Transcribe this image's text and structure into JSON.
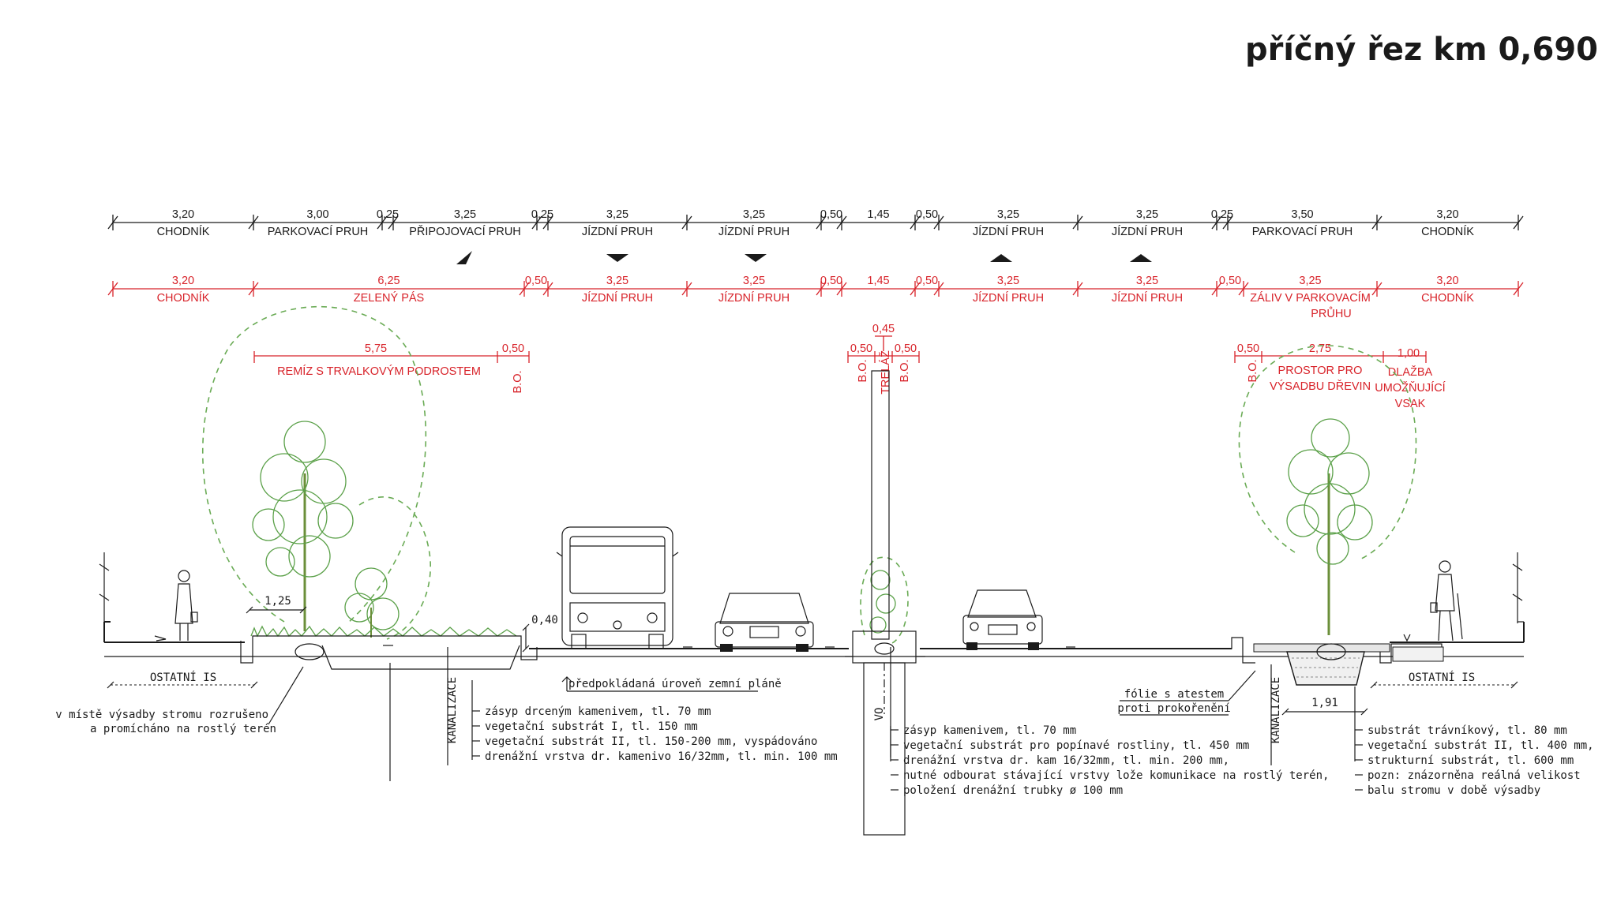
{
  "title": "příčný řez km 0,690",
  "top_dims": [
    {
      "v": "3,20",
      "l": "CHODNÍK"
    },
    {
      "v": "3,00",
      "l": "PARKOVACÍ PRUH"
    },
    {
      "v": "0,25",
      "l": ""
    },
    {
      "v": "3,25",
      "l": "PŘIPOJOVACÍ PRUH"
    },
    {
      "v": "0,25",
      "l": ""
    },
    {
      "v": "3,25",
      "l": "JÍZDNÍ PRUH"
    },
    {
      "v": "3,25",
      "l": "JÍZDNÍ PRUH"
    },
    {
      "v": "0,50",
      "l": ""
    },
    {
      "v": "1,45",
      "l": ""
    },
    {
      "v": "0,50",
      "l": ""
    },
    {
      "v": "3,25",
      "l": "JÍZDNÍ PRUH"
    },
    {
      "v": "3,25",
      "l": "JÍZDNÍ PRUH"
    },
    {
      "v": "0,25",
      "l": ""
    },
    {
      "v": "3,50",
      "l": "PARKOVACÍ PRUH"
    },
    {
      "v": "3,20",
      "l": "CHODNÍK"
    }
  ],
  "red_dims": [
    {
      "v": "3,20",
      "l": "CHODNÍK"
    },
    {
      "v": "6,25",
      "l": "ZELENÝ PÁS"
    },
    {
      "v": "0,50",
      "l": ""
    },
    {
      "v": "3,25",
      "l": "JÍZDNÍ PRUH"
    },
    {
      "v": "3,25",
      "l": "JÍZDNÍ PRUH"
    },
    {
      "v": "0,50",
      "l": ""
    },
    {
      "v": "1,45",
      "l": ""
    },
    {
      "v": "0,50",
      "l": ""
    },
    {
      "v": "3,25",
      "l": "JÍZDNÍ PRUH"
    },
    {
      "v": "3,25",
      "l": "JÍZDNÍ PRUH"
    },
    {
      "v": "0,50",
      "l": ""
    },
    {
      "v": "3,25",
      "l": "ZÁLIV V PARKOVACÍM"
    },
    {
      "v": "3,20",
      "l": "CHODNÍK"
    }
  ],
  "red_extra": {
    "zaliv_line2": "PRŮHU",
    "remiz_v": "5,75",
    "remiz_l": "REMÍZ S TRVALKOVÝM PODROSTEM",
    "remiz_bo_v": "0,50",
    "bo": "B.O.",
    "c_left": "0,50",
    "c_mid": "0,45",
    "c_right": "0,50",
    "trelaz": "TRELÁŽ",
    "r_bo_v": "0,50",
    "r_prostor_v": "2,75",
    "r_prostor_1": "PROSTOR PRO",
    "r_prostor_2": "VÝSADBU DŘEVIN",
    "r_dlazba_v": "1,00",
    "r_dlazba_1": "DLAŽBA",
    "r_dlazba_2": "UMOŽŇUJÍCÍ",
    "r_dlazba_3": "VSAK"
  },
  "section_dims": {
    "tree_l": "1,25",
    "curb_h": "0,40",
    "tree_r": "1,91"
  },
  "labels": {
    "ostatni_is_l": "OSTATNÍ IS",
    "ostatni_is_r": "OSTATNÍ IS",
    "kanalizace_l": "KANALIZACE",
    "kanalizace_r": "KANALIZACE",
    "vo": "VO",
    "predpokladana": "předpokládaná úroveň zemní pláně",
    "folie_1": "fólie s atestem",
    "folie_2": "proti prokořenění"
  },
  "notes_left": [
    "v místě výsadby stromu rozrušeno",
    "a promícháno na rostlý terén"
  ],
  "notes_green": [
    "zásyp drceným kamenivem,  tl. 70 mm",
    "vegetační substrát I, tl. 150 mm",
    "vegetační substrát II, tl. 150-200 mm, vyspádováno",
    "drenážní vrstva dr. kamenivo 16/32mm, tl. min. 100 mm"
  ],
  "notes_center": [
    "zásyp kamenivem, tl. 70 mm",
    "vegetační substrát pro popínavé rostliny, tl. 450 mm",
    "drenážní vrstva dr. kam 16/32mm, tl. min. 200 mm,",
    "nutné odbourat stávající vrstvy lože komunikace na rostlý terén,",
    "položení drenážní trubky ø 100 mm"
  ],
  "notes_right": [
    "substrát trávníkový, tl. 80 mm",
    "vegetační substrát II, tl. 400 mm,",
    "strukturní substrát, tl. 600 mm",
    "pozn: znázorněna reálná velikost",
    "balu stromu v době výsadby"
  ],
  "direction_arrows": [
    "ramp-merge-arrow",
    "down",
    "down",
    "up",
    "up"
  ]
}
